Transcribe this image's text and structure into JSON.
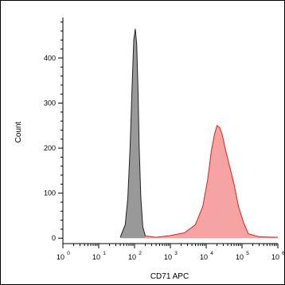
{
  "chart_data": {
    "type": "area",
    "title": "",
    "xlabel": "CD71 APC",
    "ylabel": "Count",
    "x_scale": "log",
    "xlim": [
      1,
      1000000
    ],
    "ylim": [
      -12,
      490
    ],
    "y_ticks": [
      "0",
      "100",
      "200",
      "300",
      "400"
    ],
    "x_ticks": [
      {
        "base": "10",
        "exp": "0"
      },
      {
        "base": "10",
        "exp": "1"
      },
      {
        "base": "10",
        "exp": "2"
      },
      {
        "base": "10",
        "exp": "3"
      },
      {
        "base": "10",
        "exp": "4"
      },
      {
        "base": "10",
        "exp": "5"
      },
      {
        "base": "10",
        "exp": "6"
      }
    ],
    "series": [
      {
        "color": "#999999",
        "stroke": "#222222",
        "x": [
          40,
          55,
          65,
          75,
          85,
          95,
          105,
          115,
          125,
          135,
          150,
          170,
          200,
          250
        ],
        "y": [
          2,
          30,
          90,
          200,
          330,
          440,
          465,
          430,
          330,
          200,
          90,
          25,
          5,
          0
        ]
      },
      {
        "color": "#f5a3a3",
        "stroke": "#e02020",
        "x": [
          200,
          400,
          1000,
          2500,
          5000,
          8000,
          11000,
          14000,
          17000,
          20000,
          24000,
          28000,
          35000,
          45000,
          60000,
          80000,
          110000,
          150000,
          300000,
          1000000
        ],
        "y": [
          5,
          2,
          6,
          12,
          30,
          70,
          130,
          195,
          230,
          250,
          245,
          230,
          195,
          160,
          120,
          70,
          35,
          10,
          3,
          2
        ]
      }
    ]
  }
}
